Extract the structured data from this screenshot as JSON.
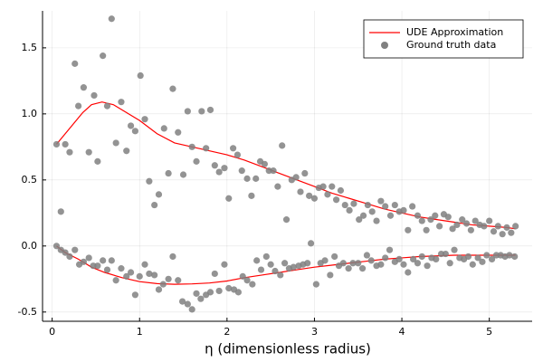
{
  "chart_data": {
    "type": "line",
    "xlabel": "η (dimensionless radius)",
    "xlim": [
      -0.11,
      5.49
    ],
    "ylim": [
      -0.57,
      1.78
    ],
    "xticks": [
      0,
      1,
      2,
      3,
      4,
      5
    ],
    "yticks": [
      -0.5,
      {
        "value": 0,
        "label": "0.0"
      },
      0.5,
      {
        "value": 1,
        "label": "1.0"
      },
      1.5
    ],
    "grid": true,
    "legend": "topright",
    "series": [
      {
        "name": "UDE Approximation",
        "color": "#ff0000",
        "type": "line",
        "x": [
          0.05,
          0.2,
          0.35,
          0.45,
          0.57,
          0.7,
          0.85,
          1.0,
          1.2,
          1.4,
          1.6,
          1.8,
          2.0,
          2.2,
          2.4,
          2.6,
          2.8,
          3.0,
          3.2,
          3.4,
          3.6,
          3.8,
          4.0,
          4.2,
          4.4,
          4.6,
          4.8,
          5.0,
          5.2,
          5.3,
          null,
          0.05,
          0.15,
          0.3,
          0.45,
          0.6,
          0.8,
          1.0,
          1.2,
          1.4,
          1.6,
          1.8,
          2.0,
          2.2,
          2.4,
          2.6,
          2.8,
          3.0,
          3.2,
          3.4,
          3.6,
          3.8,
          4.0,
          4.2,
          4.4,
          4.6,
          4.8,
          5.0,
          5.2,
          5.3
        ],
        "values": [
          0.77,
          0.89,
          1.01,
          1.07,
          1.09,
          1.07,
          1.01,
          0.95,
          0.85,
          0.78,
          0.75,
          0.72,
          0.69,
          0.65,
          0.6,
          0.55,
          0.5,
          0.45,
          0.4,
          0.36,
          0.32,
          0.28,
          0.25,
          0.22,
          0.2,
          0.18,
          0.16,
          0.15,
          0.14,
          0.13,
          null,
          0.0,
          -0.05,
          -0.1,
          -0.16,
          -0.2,
          -0.24,
          -0.27,
          -0.285,
          -0.29,
          -0.287,
          -0.28,
          -0.265,
          -0.24,
          -0.22,
          -0.2,
          -0.18,
          -0.16,
          -0.145,
          -0.13,
          -0.115,
          -0.1,
          -0.09,
          -0.08,
          -0.075,
          -0.07,
          -0.07,
          -0.07,
          -0.07,
          -0.07
        ]
      },
      {
        "name": "Ground truth data",
        "color": "#808080",
        "type": "scatter",
        "x": [
          0.05,
          0.1,
          0.15,
          0.2,
          0.26,
          0.3,
          0.36,
          0.42,
          0.48,
          0.52,
          0.58,
          0.63,
          0.68,
          0.73,
          0.79,
          0.85,
          0.9,
          0.95,
          1.01,
          1.06,
          1.11,
          1.17,
          1.22,
          1.28,
          1.33,
          1.38,
          1.44,
          1.5,
          1.55,
          1.6,
          1.65,
          1.71,
          1.76,
          1.81,
          1.86,
          1.91,
          1.97,
          2.02,
          2.07,
          2.12,
          2.17,
          2.23,
          2.28,
          2.33,
          2.38,
          2.43,
          2.48,
          2.53,
          2.58,
          2.63,
          2.68,
          2.74,
          2.79,
          2.84,
          2.89,
          2.94,
          3.0,
          3.05,
          3.1,
          3.15,
          3.2,
          3.25,
          3.3,
          3.35,
          3.4,
          3.45,
          3.51,
          3.56,
          3.61,
          3.66,
          3.71,
          3.76,
          3.81,
          3.87,
          3.92,
          3.97,
          4.02,
          4.07,
          4.12,
          4.18,
          4.23,
          4.28,
          4.33,
          4.38,
          4.43,
          4.48,
          4.53,
          4.58,
          4.63,
          4.69,
          4.74,
          4.79,
          4.84,
          4.89,
          4.94,
          5.0,
          5.05,
          5.1,
          5.15,
          5.2,
          5.25,
          5.3,
          0.05,
          0.1,
          0.15,
          0.2,
          0.26,
          0.31,
          0.36,
          0.42,
          0.47,
          0.52,
          0.58,
          0.63,
          0.68,
          0.73,
          0.79,
          0.85,
          0.9,
          0.95,
          1.0,
          1.06,
          1.11,
          1.17,
          1.22,
          1.27,
          1.33,
          1.38,
          1.44,
          1.49,
          1.55,
          1.6,
          1.65,
          1.7,
          1.76,
          1.81,
          1.86,
          1.91,
          1.97,
          2.02,
          2.08,
          2.13,
          2.18,
          2.23,
          2.29,
          2.34,
          2.39,
          2.45,
          2.5,
          2.55,
          2.61,
          2.66,
          2.71,
          2.76,
          2.82,
          2.87,
          2.92,
          2.96,
          3.02,
          3.07,
          3.12,
          3.18,
          3.23,
          3.28,
          3.33,
          3.39,
          3.44,
          3.5,
          3.55,
          3.6,
          3.65,
          3.71,
          3.76,
          3.81,
          3.86,
          3.92,
          3.97,
          4.02,
          4.07,
          4.13,
          4.18,
          4.23,
          4.29,
          4.34,
          4.39,
          4.45,
          4.5,
          4.55,
          4.6,
          4.66,
          4.71,
          4.76,
          4.81,
          4.87,
          4.92,
          4.97,
          5.03,
          5.08,
          5.13,
          5.18,
          5.23,
          5.29
        ],
        "values": [
          0.77,
          0.26,
          0.77,
          0.71,
          1.38,
          1.06,
          1.2,
          0.71,
          1.14,
          0.64,
          1.44,
          1.06,
          1.72,
          0.78,
          1.09,
          0.72,
          0.91,
          0.87,
          1.29,
          0.96,
          0.49,
          0.31,
          0.39,
          0.89,
          0.55,
          1.19,
          0.86,
          0.54,
          1.02,
          0.75,
          0.64,
          1.02,
          0.74,
          1.03,
          0.61,
          0.56,
          0.59,
          0.36,
          0.74,
          0.69,
          0.57,
          0.51,
          0.38,
          0.51,
          0.64,
          0.62,
          0.57,
          0.57,
          0.45,
          0.76,
          0.2,
          0.5,
          0.52,
          0.41,
          0.55,
          0.38,
          0.36,
          0.44,
          0.45,
          0.39,
          0.45,
          0.35,
          0.42,
          0.31,
          0.27,
          0.32,
          0.2,
          0.23,
          0.31,
          0.26,
          0.19,
          0.34,
          0.3,
          0.23,
          0.31,
          0.26,
          0.27,
          0.12,
          0.3,
          0.23,
          0.19,
          0.12,
          0.2,
          0.23,
          0.15,
          0.24,
          0.22,
          0.13,
          0.16,
          0.2,
          0.17,
          0.12,
          0.19,
          0.16,
          0.15,
          0.19,
          0.11,
          0.15,
          0.09,
          0.14,
          0.1,
          0.15,
          0.0,
          -0.03,
          -0.05,
          -0.08,
          -0.03,
          -0.14,
          -0.12,
          -0.09,
          -0.15,
          -0.15,
          -0.11,
          -0.18,
          -0.11,
          -0.26,
          -0.17,
          -0.23,
          -0.2,
          -0.37,
          -0.23,
          -0.14,
          -0.21,
          -0.22,
          -0.33,
          -0.29,
          -0.25,
          -0.08,
          -0.26,
          -0.42,
          -0.44,
          -0.48,
          -0.36,
          -0.4,
          -0.37,
          -0.35,
          -0.21,
          -0.34,
          -0.14,
          -0.32,
          -0.33,
          -0.35,
          -0.23,
          -0.26,
          -0.29,
          -0.11,
          -0.18,
          -0.08,
          -0.14,
          -0.19,
          -0.22,
          -0.13,
          -0.17,
          -0.16,
          -0.15,
          -0.14,
          -0.13,
          0.02,
          -0.29,
          -0.13,
          -0.11,
          -0.22,
          -0.08,
          -0.15,
          -0.13,
          -0.17,
          -0.13,
          -0.13,
          -0.17,
          -0.07,
          -0.11,
          -0.15,
          -0.14,
          -0.09,
          -0.03,
          -0.12,
          -0.1,
          -0.14,
          -0.2,
          -0.1,
          -0.13,
          -0.08,
          -0.15,
          -0.09,
          -0.1,
          -0.06,
          -0.06,
          -0.13,
          -0.03,
          -0.09,
          -0.1,
          -0.08,
          -0.14,
          -0.09,
          -0.12,
          -0.07,
          -0.1,
          -0.07,
          -0.07,
          -0.08,
          -0.07,
          -0.08
        ]
      }
    ]
  }
}
